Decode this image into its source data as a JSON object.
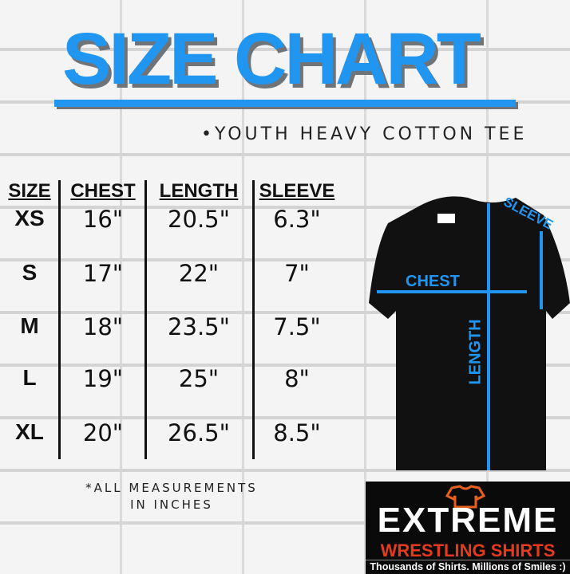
{
  "title": "SIZE CHART",
  "subtitle": "•YOUTH HEAVY COTTON TEE",
  "table": {
    "headers": [
      "SIZE",
      "CHEST",
      "LENGTH",
      "SLEEVE"
    ],
    "rows": [
      [
        "XS",
        "16\"",
        "20.5\"",
        "6.3\""
      ],
      [
        "S",
        "17\"",
        "22\"",
        "7\""
      ],
      [
        "M",
        "18\"",
        "23.5\"",
        "7.5\""
      ],
      [
        "L",
        "19\"",
        "25\"",
        "8\""
      ],
      [
        "XL",
        "20\"",
        "26.5\"",
        "8.5\""
      ]
    ]
  },
  "note": [
    "*ALL MEASUREMENTS",
    "IN INCHES"
  ],
  "diagram": {
    "chest": "CHEST",
    "length": "LENGTH",
    "sleeve": "SLEEVE"
  },
  "logo": {
    "name": "EXTREME",
    "sub": "WRESTLING SHIRTS",
    "tagline": "Thousands of Shirts. Millions of Smiles :)"
  },
  "colors": {
    "accent": "#2196f0",
    "logo_red": "#e53a1e",
    "shirt": "#111111"
  }
}
